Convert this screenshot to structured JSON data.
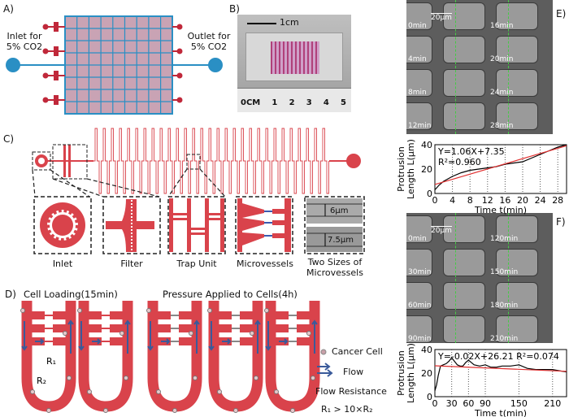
{
  "panels": {
    "a": "A)",
    "b": "B)",
    "c": "C)",
    "d": "D)",
    "e": "E)",
    "f": "F)"
  },
  "panel_a": {
    "inlet": "Inlet for",
    "inlet2": "5% CO2",
    "outlet": "Outlet for",
    "outlet2": "5% CO2"
  },
  "panel_b": {
    "scale": "1cm",
    "ruler": [
      "0CM",
      "1",
      "2",
      "3",
      "4",
      "5"
    ]
  },
  "panel_c": {
    "labels": [
      "Inlet",
      "Filter",
      "Trap Unit",
      "Microvessels",
      "Two Sizes of Microvessels"
    ],
    "size1": "6μm",
    "size2": "7.5μm"
  },
  "panel_d": {
    "title1": "Cell Loading(15min)",
    "title2": "Pressure Applied to Cells(4h)",
    "legend_cell": "Cancer Cell",
    "legend_flow": "Flow",
    "legend_resistance": "Flow Resistance",
    "relation": "R₁ > 10×R₂",
    "r1": "R₁",
    "r2": "R₂"
  },
  "panel_e": {
    "scalebar": "20μm",
    "times": [
      "0min",
      "16min",
      "4min",
      "20min",
      "8min",
      "24min",
      "12min",
      "28min"
    ]
  },
  "panel_f": {
    "scalebar": "20μm",
    "times": [
      "0min",
      "120min",
      "30min",
      "150min",
      "60min",
      "180min",
      "90min",
      "210min"
    ]
  },
  "colors": {
    "channel": "#d9434b",
    "co2": "#2a8fc4",
    "flow": "#3a5a9a",
    "fit": "#e03030"
  },
  "chart_data": [
    {
      "type": "line",
      "xlabel": "Time t(min)",
      "ylabel": "Protrusion Length L(μm)",
      "xlim": [
        0,
        30
      ],
      "ylim": [
        0,
        40
      ],
      "xticks": [
        0,
        4,
        8,
        12,
        16,
        20,
        24,
        28
      ],
      "yticks": [
        0,
        20,
        40
      ],
      "annotation1": "Y=1.06X+7.35",
      "annotation2": "R²=0.960",
      "series": [
        {
          "x": [
            0,
            1,
            2,
            4,
            6,
            8,
            10,
            12,
            14,
            16,
            18,
            20,
            22,
            24,
            26,
            28,
            30
          ],
          "y": [
            3,
            7,
            10,
            14,
            17,
            19,
            20,
            21,
            22,
            24,
            25,
            26,
            29,
            32,
            35,
            38,
            40
          ]
        }
      ],
      "fit": {
        "slope": 1.06,
        "intercept": 7.35
      }
    },
    {
      "type": "line",
      "xlabel": "Time t(min)",
      "ylabel": "Protrusion Length L(μm)",
      "xlim": [
        0,
        235
      ],
      "ylim": [
        0,
        40
      ],
      "xticks": [
        0,
        30,
        60,
        90,
        150,
        210
      ],
      "yticks": [
        0,
        20,
        40
      ],
      "annotation1": "Y=-0.02X+26.21  R²=0.074",
      "series": [
        {
          "x": [
            0,
            3,
            6,
            10,
            15,
            20,
            25,
            30,
            35,
            40,
            45,
            50,
            55,
            60,
            65,
            70,
            80,
            90,
            100,
            110,
            120,
            135,
            150,
            165,
            180,
            195,
            210,
            222,
            235
          ],
          "y": [
            5,
            10,
            18,
            26,
            27,
            28,
            30,
            33,
            30,
            27,
            26,
            26,
            29,
            31,
            29,
            27,
            26,
            27,
            25,
            25,
            26,
            26,
            27,
            24,
            23,
            23,
            23,
            22,
            21
          ]
        }
      ],
      "fit": {
        "slope": -0.02,
        "intercept": 26.21
      }
    }
  ]
}
